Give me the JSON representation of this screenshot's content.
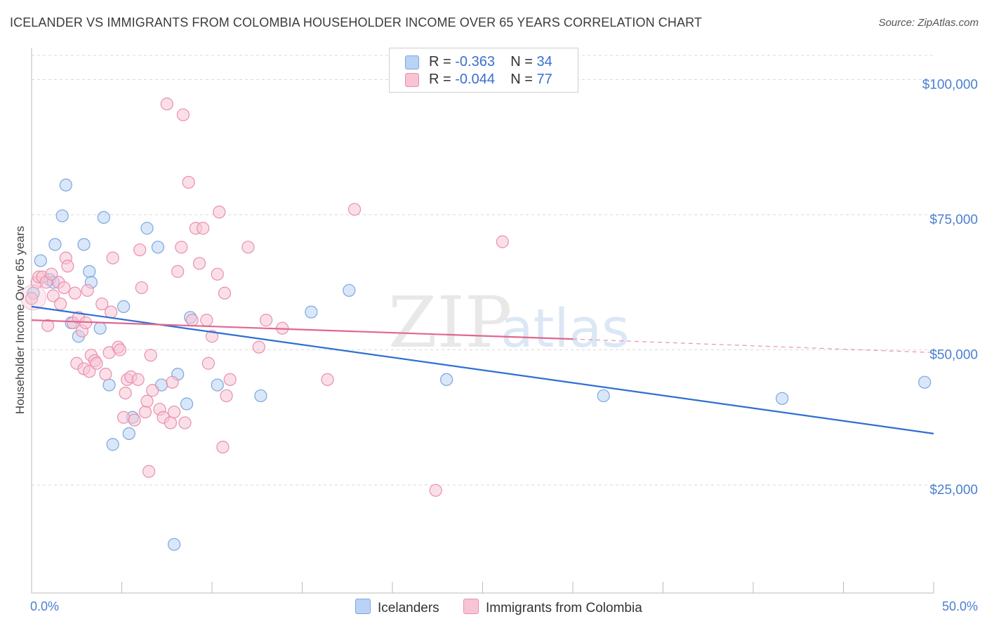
{
  "title": "ICELANDER VS IMMIGRANTS FROM COLOMBIA HOUSEHOLDER INCOME OVER 65 YEARS CORRELATION CHART",
  "source": "Source: ZipAtlas.com",
  "watermark": {
    "zip": "ZIP",
    "atlas": "atlas"
  },
  "colors": {
    "blue_fill": "#b9d3f4",
    "blue_stroke": "#7aa7e0",
    "blue_line": "#2e6fd3",
    "pink_fill": "#f7c4d4",
    "pink_stroke": "#e98fae",
    "pink_line": "#e0678e",
    "tick_text": "#4a7fd1",
    "grid": "#d8d8d8"
  },
  "legend": {
    "rows": [
      {
        "r_label": "R =",
        "r_value": "-0.363",
        "n_label": "N =",
        "n_value": "34"
      },
      {
        "r_label": "R =",
        "r_value": "-0.044",
        "n_label": "N =",
        "n_value": "77"
      }
    ]
  },
  "chart_data": {
    "type": "scatter",
    "title": "ICELANDER VS IMMIGRANTS FROM COLOMBIA HOUSEHOLDER INCOME OVER 65 YEARS CORRELATION CHART",
    "xlabel": "",
    "ylabel": "Householder Income Over 65 years",
    "xlim": [
      0,
      50
    ],
    "ylim": [
      5000,
      105000
    ],
    "x_tick_labels": [
      "0.0%",
      "50.0%"
    ],
    "y_ticks": [
      25000,
      50000,
      75000,
      100000
    ],
    "y_tick_labels": [
      "$25,000",
      "$50,000",
      "$75,000",
      "$100,000"
    ],
    "grid": true,
    "legend_position": "bottom",
    "series": [
      {
        "name": "Icelanders",
        "color": "#7aa7e0",
        "trend": {
          "x": [
            0,
            50
          ],
          "y": [
            58000,
            34500
          ]
        },
        "points": [
          [
            0.1,
            60500
          ],
          [
            0.5,
            66500
          ],
          [
            1.0,
            63000
          ],
          [
            1.2,
            62500
          ],
          [
            1.3,
            69500
          ],
          [
            1.7,
            74800
          ],
          [
            1.9,
            80500
          ],
          [
            2.2,
            55000
          ],
          [
            2.6,
            52500
          ],
          [
            2.9,
            69500
          ],
          [
            3.2,
            64500
          ],
          [
            3.3,
            62500
          ],
          [
            3.8,
            54000
          ],
          [
            4.0,
            74500
          ],
          [
            4.3,
            43500
          ],
          [
            4.5,
            32500
          ],
          [
            5.1,
            58000
          ],
          [
            5.4,
            34500
          ],
          [
            5.6,
            37500
          ],
          [
            6.4,
            72500
          ],
          [
            7.0,
            69000
          ],
          [
            7.2,
            43500
          ],
          [
            7.9,
            14000
          ],
          [
            8.1,
            45500
          ],
          [
            8.6,
            40000
          ],
          [
            8.8,
            56000
          ],
          [
            10.3,
            43500
          ],
          [
            12.7,
            41500
          ],
          [
            15.5,
            57000
          ],
          [
            17.6,
            61000
          ],
          [
            23.0,
            44500
          ],
          [
            31.7,
            41500
          ],
          [
            41.6,
            41000
          ],
          [
            49.5,
            44000
          ]
        ]
      },
      {
        "name": "Immigrants from Colombia",
        "color": "#e98fae",
        "trend": {
          "x": [
            0,
            30
          ],
          "y": [
            55500,
            52000
          ],
          "dashed_to": {
            "x": 50,
            "y": 49500
          }
        },
        "points": [
          [
            0.0,
            59500
          ],
          [
            0.3,
            62500
          ],
          [
            0.4,
            63500
          ],
          [
            0.6,
            63500
          ],
          [
            0.8,
            62500
          ],
          [
            0.9,
            54500
          ],
          [
            1.1,
            64000
          ],
          [
            1.2,
            60000
          ],
          [
            1.5,
            62500
          ],
          [
            1.6,
            58500
          ],
          [
            1.8,
            61500
          ],
          [
            1.9,
            67000
          ],
          [
            2.0,
            65500
          ],
          [
            2.3,
            55000
          ],
          [
            2.4,
            60500
          ],
          [
            2.5,
            47500
          ],
          [
            2.6,
            56000
          ],
          [
            2.8,
            53500
          ],
          [
            2.9,
            46500
          ],
          [
            3.0,
            55000
          ],
          [
            3.1,
            61000
          ],
          [
            3.2,
            46000
          ],
          [
            3.3,
            49000
          ],
          [
            3.5,
            48000
          ],
          [
            3.6,
            47500
          ],
          [
            3.9,
            58500
          ],
          [
            4.1,
            45500
          ],
          [
            4.3,
            49500
          ],
          [
            4.4,
            57000
          ],
          [
            4.5,
            67000
          ],
          [
            4.8,
            50500
          ],
          [
            4.9,
            50000
          ],
          [
            5.1,
            37500
          ],
          [
            5.2,
            42000
          ],
          [
            5.3,
            44500
          ],
          [
            5.5,
            45000
          ],
          [
            5.7,
            37000
          ],
          [
            5.9,
            44500
          ],
          [
            6.0,
            68500
          ],
          [
            6.1,
            61500
          ],
          [
            6.3,
            38500
          ],
          [
            6.4,
            40500
          ],
          [
            6.5,
            27500
          ],
          [
            6.6,
            49000
          ],
          [
            6.7,
            42500
          ],
          [
            7.1,
            39000
          ],
          [
            7.3,
            37500
          ],
          [
            7.5,
            95500
          ],
          [
            7.7,
            36500
          ],
          [
            7.8,
            44000
          ],
          [
            7.9,
            38500
          ],
          [
            8.1,
            64500
          ],
          [
            8.3,
            69000
          ],
          [
            8.4,
            93500
          ],
          [
            8.5,
            36500
          ],
          [
            8.7,
            81000
          ],
          [
            8.9,
            55500
          ],
          [
            9.1,
            72500
          ],
          [
            9.3,
            66000
          ],
          [
            9.5,
            72500
          ],
          [
            9.7,
            55500
          ],
          [
            9.8,
            47500
          ],
          [
            10.0,
            52500
          ],
          [
            10.3,
            64000
          ],
          [
            10.4,
            75500
          ],
          [
            10.6,
            32000
          ],
          [
            10.7,
            60500
          ],
          [
            10.8,
            41500
          ],
          [
            11.0,
            44500
          ],
          [
            12.0,
            69000
          ],
          [
            12.6,
            50500
          ],
          [
            13.0,
            55500
          ],
          [
            13.9,
            54000
          ],
          [
            16.4,
            44500
          ],
          [
            17.9,
            76000
          ],
          [
            22.4,
            24000
          ],
          [
            26.1,
            70000
          ]
        ]
      }
    ]
  }
}
